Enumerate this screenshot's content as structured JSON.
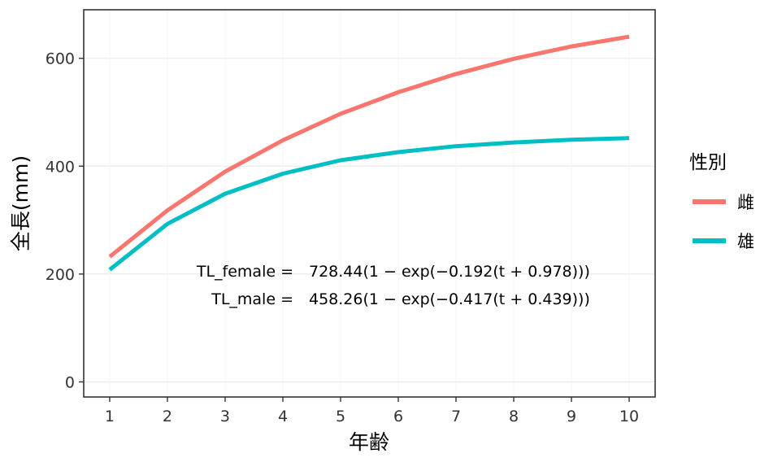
{
  "chart_data": {
    "type": "line",
    "xlabel": "年齢",
    "ylabel": "全長(mm)",
    "xlim": [
      0.55,
      10.45
    ],
    "ylim": [
      -28,
      690
    ],
    "x_ticks": [
      1,
      2,
      3,
      4,
      5,
      6,
      7,
      8,
      9,
      10
    ],
    "y_ticks": [
      0,
      200,
      400,
      600
    ],
    "grid": true,
    "legend": {
      "title": "性別",
      "position": "right"
    },
    "x": [
      1,
      2,
      3,
      4,
      5,
      6,
      7,
      8,
      9,
      10
    ],
    "series": [
      {
        "name": "雌",
        "color": "#F8766D",
        "values": [
          232,
          318,
          390,
          448,
          497,
          537,
          571,
          599,
          622,
          640
        ]
      },
      {
        "name": "雄",
        "color": "#00BFC4",
        "values": [
          208,
          293,
          349,
          386,
          411,
          426,
          437,
          444,
          449,
          452
        ]
      }
    ],
    "annotations": [
      {
        "lhs": "TL_female =",
        "rhs": "728.44(1 − exp(−0.192(t + 0.978)))"
      },
      {
        "lhs": "TL_male =",
        "rhs": "458.26(1 − exp(−0.417(t + 0.439)))"
      }
    ]
  }
}
